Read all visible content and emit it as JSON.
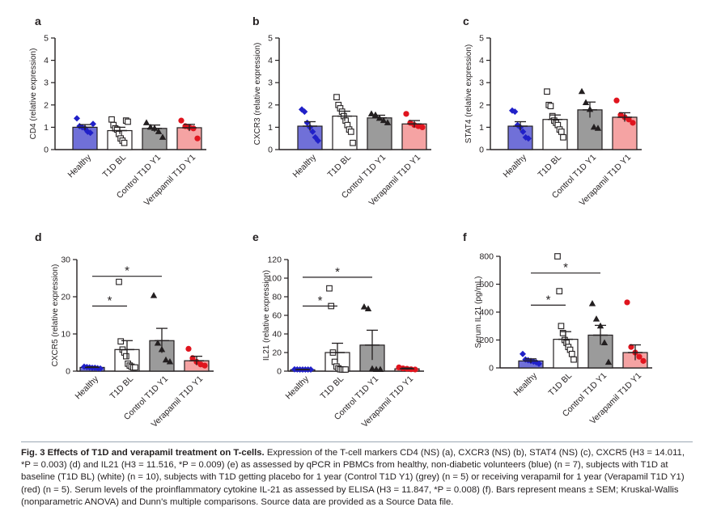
{
  "figure": {
    "colors": {
      "healthy": "#7070d8",
      "t1d_bl": "#ffffff",
      "control": "#9b9b9b",
      "verapamil": "#f5a3a3",
      "healthy_marker": "#2020c8",
      "verapamil_marker": "#e0141e",
      "ink": "#231f20"
    },
    "panels": [
      {
        "letter": "a"
      },
      {
        "letter": "b"
      },
      {
        "letter": "c"
      },
      {
        "letter": "d"
      },
      {
        "letter": "e"
      },
      {
        "letter": "f"
      }
    ]
  },
  "chart_data": [
    {
      "type": "bar",
      "panel": "a",
      "ylabel": "CD4 (relative expression)",
      "ylim": [
        0,
        5
      ],
      "yticks": [
        "0",
        "1",
        "2",
        "3",
        "4",
        "5"
      ],
      "categories": [
        "Healthy",
        "T1D BL",
        "Control T1D Y1",
        "Verapamil T1D Y1"
      ],
      "values": [
        1.0,
        0.85,
        0.95,
        0.98
      ],
      "sem": [
        0.12,
        0.15,
        0.15,
        0.15
      ],
      "points": [
        [
          1.4,
          1.05,
          1.0,
          0.95,
          0.8,
          0.75,
          1.15
        ],
        [
          1.35,
          1.1,
          0.95,
          0.9,
          0.7,
          0.5,
          0.4,
          0.3,
          1.3,
          1.25
        ],
        [
          1.2,
          1.0,
          0.95,
          0.8,
          0.55
        ],
        [
          1.3,
          1.05,
          1.0,
          0.95,
          0.5
        ]
      ],
      "significance": []
    },
    {
      "type": "bar",
      "panel": "b",
      "ylabel": "CXCR3 (relative expression)",
      "ylim": [
        0,
        5
      ],
      "yticks": [
        "0",
        "1",
        "2",
        "3",
        "4",
        "5"
      ],
      "categories": [
        "Healthy",
        "T1D BL",
        "Control T1D Y1",
        "Verapamil T1D Y1"
      ],
      "values": [
        1.05,
        1.5,
        1.42,
        1.15
      ],
      "sem": [
        0.2,
        0.22,
        0.12,
        0.15
      ],
      "points": [
        [
          1.8,
          1.7,
          1.2,
          1.0,
          0.8,
          0.55,
          0.4
        ],
        [
          2.35,
          2.0,
          1.85,
          1.7,
          1.5,
          1.3,
          1.1,
          0.9,
          0.8,
          0.3
        ],
        [
          1.6,
          1.55,
          1.4,
          1.3,
          1.2
        ],
        [
          1.6,
          1.2,
          1.1,
          1.05,
          1.0
        ]
      ],
      "significance": []
    },
    {
      "type": "bar",
      "panel": "c",
      "ylabel": "STAT4 (relative expression)",
      "ylim": [
        0,
        5
      ],
      "yticks": [
        "0",
        "1",
        "2",
        "3",
        "4",
        "5"
      ],
      "categories": [
        "Healthy",
        "T1D BL",
        "Control T1D Y1",
        "Verapamil T1D Y1"
      ],
      "values": [
        1.05,
        1.35,
        1.78,
        1.45
      ],
      "sem": [
        0.2,
        0.2,
        0.35,
        0.2
      ],
      "points": [
        [
          1.75,
          1.7,
          1.1,
          1.0,
          0.8,
          0.55,
          0.5
        ],
        [
          2.6,
          2.0,
          1.95,
          1.5,
          1.3,
          1.2,
          1.1,
          0.9,
          0.8,
          0.55
        ],
        [
          2.6,
          2.1,
          1.8,
          1.0,
          0.95
        ],
        [
          2.2,
          1.55,
          1.45,
          1.35,
          1.2
        ]
      ],
      "significance": []
    },
    {
      "type": "bar",
      "panel": "d",
      "ylabel": "CXCR5 (relative expression)",
      "ylim": [
        0,
        30
      ],
      "yticks": [
        "0",
        "10",
        "20",
        "30"
      ],
      "categories": [
        "Healthy",
        "T1D BL",
        "Control T1D Y1",
        "Verapamil T1D Y1"
      ],
      "values": [
        1.0,
        5.8,
        8.2,
        2.8
      ],
      "sem": [
        0.15,
        2.4,
        3.3,
        1.2
      ],
      "points": [
        [
          1.2,
          1.1,
          1.0,
          0.9,
          0.9,
          0.8,
          0.7
        ],
        [
          24.0,
          8.0,
          5.8,
          5.0,
          4.0,
          2.0,
          1.5,
          1.2,
          1.0,
          1.0
        ],
        [
          20.3,
          7.5,
          5.8,
          3.0,
          2.5
        ],
        [
          6.0,
          3.5,
          2.5,
          1.8,
          1.5
        ]
      ],
      "significance": [
        {
          "from": 0,
          "to": 1,
          "y": 17.5,
          "label": "*"
        },
        {
          "from": 0,
          "to": 2,
          "y": 25.5,
          "label": "*"
        }
      ]
    },
    {
      "type": "bar",
      "panel": "e",
      "ylabel": "IL21 (relative expression)",
      "ylim": [
        0,
        120
      ],
      "yticks": [
        "0",
        "20",
        "40",
        "60",
        "80",
        "100",
        "120"
      ],
      "categories": [
        "Healthy",
        "T1D BL",
        "Control T1D Y1",
        "Verapamil T1D Y1"
      ],
      "values": [
        1.5,
        20.0,
        28.0,
        2.5
      ],
      "sem": [
        0.3,
        10.0,
        16.0,
        0.8
      ],
      "points": [
        [
          2.0,
          1.8,
          1.5,
          1.2,
          1.0,
          1.0,
          0.8
        ],
        [
          89.0,
          70.0,
          20.0,
          10.0,
          5.0,
          3.0,
          2.0,
          1.5,
          1.0,
          1.0
        ],
        [
          69.0,
          67.0,
          2.5,
          1.5,
          1.0
        ],
        [
          4.0,
          3.0,
          2.5,
          2.0,
          1.5
        ]
      ],
      "significance": [
        {
          "from": 0,
          "to": 1,
          "y": 70.0,
          "label": "*"
        },
        {
          "from": 0,
          "to": 2,
          "y": 101.0,
          "label": "*"
        }
      ]
    },
    {
      "type": "bar",
      "panel": "f",
      "ylabel": "Serum IL21 (pg/mL)",
      "ylim": [
        0,
        800
      ],
      "yticks": [
        "0",
        "200",
        "400",
        "600",
        "800"
      ],
      "categories": [
        "Healthy",
        "T1D BL",
        "Control T1D Y1",
        "Verapamil T1D Y1"
      ],
      "values": [
        50,
        205,
        235,
        110
      ],
      "sem": [
        15,
        55,
        70,
        55
      ],
      "points": [
        [
          100,
          60,
          55,
          50,
          45,
          40,
          30
        ],
        [
          800,
          550,
          300,
          250,
          200,
          180,
          150,
          130,
          100,
          60
        ],
        [
          460,
          350,
          300,
          180,
          40
        ],
        [
          470,
          150,
          110,
          80,
          50
        ]
      ],
      "significance": [
        {
          "from": 0,
          "to": 1,
          "y": 450,
          "label": "*"
        },
        {
          "from": 0,
          "to": 2,
          "y": 680,
          "label": "*"
        }
      ]
    }
  ],
  "caption": {
    "title": "Fig. 3 Effects of T1D and verapamil treatment on T-cells.",
    "body": "Expression of the T-cell markers CD4 (NS) (a), CXCR3 (NS) (b), STAT4 (NS) (c), CXCR5 (H3 = 14.011, *P = 0.003) (d) and IL21 (H3 = 11.516, *P = 0.009) (e) as assessed by qPCR in PBMCs from healthy, non-diabetic volunteers (blue) (n = 7), subjects with T1D at baseline (T1D BL) (white) (n = 10), subjects with T1D getting placebo for 1 year (Control T1D Y1) (grey) (n = 5) or receiving verapamil for 1 year (Verapamil T1D Y1) (red) (n = 5). Serum levels of the proinflammatory cytokine IL-21 as assessed by ELISA (H3 = 11.847, *P = 0.008) (f). Bars represent means ± SEM; Kruskal-Wallis (nonparametric ANOVA) and Dunn's multiple comparisons. Source data are provided as a Source Data file."
  }
}
